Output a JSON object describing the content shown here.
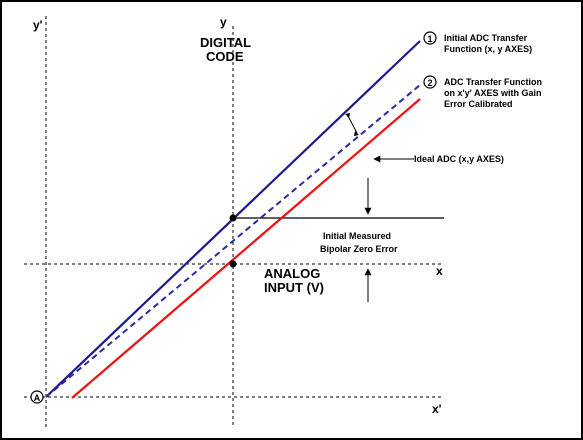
{
  "axes": {
    "y_prime": "y'",
    "y": "y",
    "x": "x",
    "x_prime": "x'",
    "origin_marker": "A"
  },
  "labels": {
    "digital_code_line1": "DIGITAL",
    "digital_code_line2": "CODE",
    "analog_input_line1": "ANALOG",
    "analog_input_line2": "INPUT (V)",
    "bipolar_error_line1": "Initial Measured",
    "bipolar_error_line2": "Bipolar Zero Error"
  },
  "legend": {
    "item1_number": "1",
    "item1_line1": "Initial ADC Transfer",
    "item1_line2": "Function    (x, y AXES)",
    "item2_number": "2",
    "item2_line1": "ADC Transfer Function",
    "item2_line2": "on x'y' AXES with Gain",
    "item2_line3": "Error Calibrated",
    "ideal_label": "Ideal ADC (x,y AXES)"
  },
  "colors": {
    "initial_line": "#1c1a8e",
    "calibrated_line": "#2c2aa0",
    "ideal_line": "#ee1111",
    "axis": "#000000"
  }
}
